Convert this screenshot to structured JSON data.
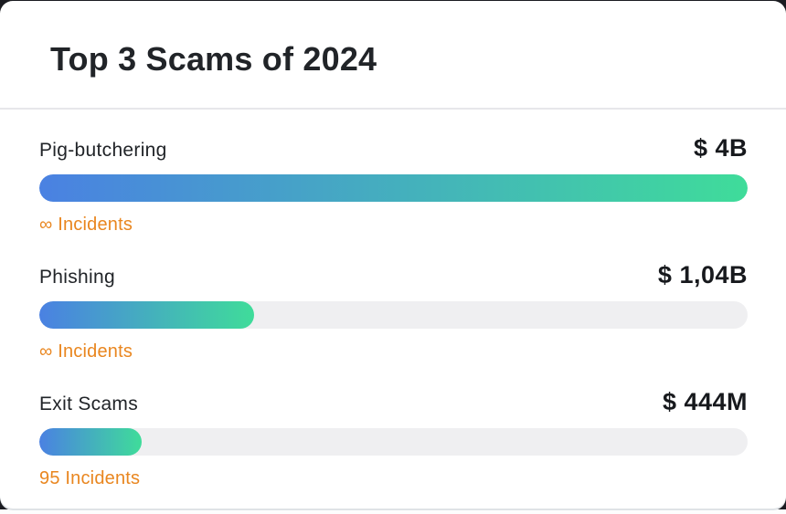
{
  "header": {
    "title": "Top 3 Scams of 2024"
  },
  "chart_data": {
    "type": "bar",
    "orientation": "horizontal",
    "title": "Top 3 Scams of 2024",
    "categories": [
      "Pig-butchering",
      "Phishing",
      "Exit Scams"
    ],
    "values_usd": [
      4000000000,
      1040000000,
      444000000
    ],
    "value_labels": [
      "$ 4B",
      "$ 1,04B",
      "$ 444M"
    ],
    "incident_labels": [
      "∞ Incidents",
      "∞ Incidents",
      "95 Incidents"
    ],
    "bar_fill_percent": [
      100,
      30.3,
      14.5
    ],
    "legend": "none",
    "grid": "off",
    "bars": [
      {
        "label": "Pig-butchering",
        "amount": "$ 4B",
        "incidents": "∞ Incidents",
        "fill_percent": 100
      },
      {
        "label": "Phishing",
        "amount": "$ 1,04B",
        "incidents": "∞ Incidents",
        "fill_percent": 30.3
      },
      {
        "label": "Exit Scams",
        "amount": "$ 444M",
        "incidents": "95 Incidents",
        "fill_percent": 14.5
      }
    ]
  },
  "colors": {
    "backdrop": "#1b1c21",
    "card_bg": "#ffffff",
    "bottom_edge": "#dfe3e6",
    "title": "#212428",
    "label": "#212428",
    "amount": "#17191d",
    "divider": "#e7e7ea",
    "track": "#efeff1",
    "incidents": "#e9861f",
    "grad_start": "#4a81e2",
    "grad_end": "#3fdc9a"
  }
}
